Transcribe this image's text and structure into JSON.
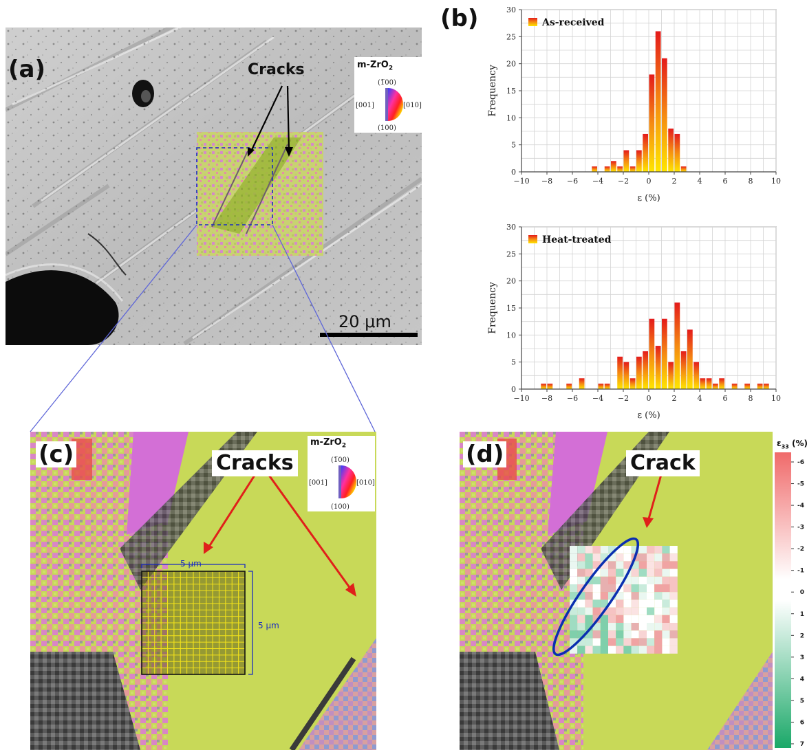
{
  "panels": {
    "a": {
      "label": "(a)",
      "cracks_label": "Cracks",
      "scale_bar": "20 μm"
    },
    "b": {
      "label": "(b)"
    },
    "c": {
      "label": "(c)",
      "cracks_label": "Cracks",
      "grid_w": "5 μm",
      "grid_h": "5 μm"
    },
    "d": {
      "label": "(d)",
      "crack_label": "Crack"
    }
  },
  "color_key": {
    "phase": "m-ZrO",
    "phase_sub": "2",
    "top": "(1̅00)",
    "left": "[001]",
    "right": "[010]",
    "bottom": "(100)"
  },
  "strain_scale": {
    "title": "ε",
    "title_sub": "33",
    "unit": "(%)",
    "ticks": [
      "-6",
      "-5",
      "-4",
      "-3",
      "-2",
      "-1",
      "0",
      "1",
      "2",
      "3",
      "4",
      "5",
      "6",
      "7"
    ]
  },
  "chart_data": [
    {
      "type": "bar",
      "legend": "As-received",
      "xlabel": "ε (%)",
      "ylabel": "Frequency",
      "xlim": [
        -10,
        10
      ],
      "ylim": [
        0,
        30
      ],
      "xticks": [
        -10,
        -8,
        -6,
        -4,
        -2,
        0,
        2,
        4,
        6,
        8,
        10
      ],
      "yticks": [
        0,
        5,
        10,
        15,
        20,
        25,
        30
      ],
      "bin_width": 0.5,
      "x": [
        -4.5,
        -4.0,
        -3.5,
        -3.0,
        -2.5,
        -2.0,
        -1.5,
        -1.0,
        -0.5,
        0.0,
        0.5,
        1.0,
        1.5,
        2.0,
        2.5
      ],
      "values": [
        1,
        0,
        1,
        2,
        1,
        4,
        1,
        4,
        7,
        18,
        26,
        21,
        8,
        7,
        1
      ]
    },
    {
      "type": "bar",
      "legend": "Heat-treated",
      "xlabel": "ε (%)",
      "ylabel": "Frequency",
      "xlim": [
        -10,
        10
      ],
      "ylim": [
        0,
        30
      ],
      "xticks": [
        -10,
        -8,
        -6,
        -4,
        -2,
        0,
        2,
        4,
        6,
        8,
        10
      ],
      "yticks": [
        0,
        5,
        10,
        15,
        20,
        25,
        30
      ],
      "bin_width": 0.5,
      "x": [
        -8.5,
        -8.0,
        -6.5,
        -5.5,
        -4.0,
        -3.5,
        -2.5,
        -2.0,
        -1.5,
        -1.0,
        -0.5,
        0.0,
        0.5,
        1.0,
        1.5,
        2.0,
        2.5,
        3.0,
        3.5,
        4.0,
        4.5,
        5.0,
        5.5,
        6.5,
        7.5,
        8.5,
        9.0
      ],
      "values": [
        1,
        1,
        1,
        2,
        1,
        1,
        6,
        5,
        2,
        6,
        7,
        13,
        8,
        13,
        5,
        16,
        7,
        11,
        5,
        2,
        2,
        1,
        2,
        1,
        1,
        1,
        1
      ]
    }
  ]
}
